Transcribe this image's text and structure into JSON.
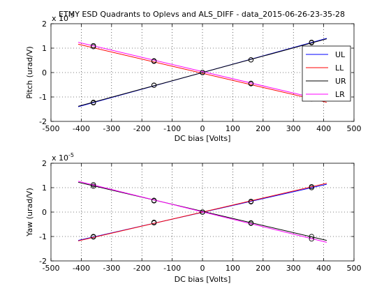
{
  "figure_title": "ETMY ESD Quadrants to Oplevs and ALS_DIFF - data_2015-06-26-23-35-28",
  "chart_data": [
    {
      "type": "line",
      "xlabel": "DC bias [Volts]",
      "ylabel": "Pitch (urad/V)",
      "xlim": [
        -500,
        500
      ],
      "ylim": [
        -2,
        2
      ],
      "x_ticks": [
        "-500",
        "-400",
        "-300",
        "-200",
        "-100",
        "0",
        "100",
        "200",
        "300",
        "400",
        "500"
      ],
      "y_ticks": [
        "-2",
        "-1",
        "0",
        "1",
        "2"
      ],
      "y_exponent": "x 10",
      "y_exponent_power": "-5",
      "grid": true,
      "legend_position": "right",
      "x": [
        -360,
        -160,
        0,
        160,
        360
      ],
      "fit_x": [
        -410,
        410
      ],
      "series": [
        {
          "name": "UL",
          "color": "#0000ff",
          "points": [
            -1.24,
            -0.52,
            0.0,
            0.52,
            1.24
          ],
          "fit": [
            -1.4,
            1.4
          ]
        },
        {
          "name": "LL",
          "color": "#ff0000",
          "points": [
            1.06,
            0.46,
            0.0,
            -0.46,
            -1.08
          ],
          "fit": [
            1.16,
            -1.22
          ]
        },
        {
          "name": "UR",
          "color": "#000000",
          "points": [
            -1.22,
            -0.52,
            0.0,
            0.52,
            1.22
          ],
          "fit": [
            -1.38,
            1.38
          ]
        },
        {
          "name": "LR",
          "color": "#ff00ff",
          "points": [
            1.1,
            0.48,
            0.0,
            -0.44,
            -1.04
          ],
          "fit": [
            1.24,
            -1.16
          ]
        }
      ]
    },
    {
      "type": "line",
      "xlabel": "DC bias [Volts]",
      "ylabel": "Yaw (urad/V)",
      "xlim": [
        -500,
        500
      ],
      "ylim": [
        -2,
        2
      ],
      "x_ticks": [
        "-500",
        "-400",
        "-300",
        "-200",
        "-100",
        "0",
        "100",
        "200",
        "300",
        "400",
        "500"
      ],
      "y_ticks": [
        "-2",
        "-1",
        "0",
        "1",
        "2"
      ],
      "y_exponent": "x 10",
      "y_exponent_power": "-5",
      "grid": true,
      "x": [
        -360,
        -160,
        0,
        160,
        360
      ],
      "fit_x": [
        -410,
        410
      ],
      "series": [
        {
          "color": "#0000ff",
          "points": [
            -1.0,
            -0.42,
            0.0,
            0.42,
            1.0
          ],
          "fit": [
            -1.16,
            1.14
          ]
        },
        {
          "color": "#ff0000",
          "points": [
            -1.02,
            -0.44,
            0.0,
            0.44,
            1.04
          ],
          "fit": [
            -1.18,
            1.18
          ]
        },
        {
          "color": "#000000",
          "points": [
            1.06,
            0.46,
            0.0,
            -0.44,
            -1.0
          ],
          "fit": [
            1.22,
            -1.16
          ]
        },
        {
          "color": "#ff00ff",
          "points": [
            1.12,
            0.48,
            0.0,
            -0.46,
            -1.1
          ],
          "fit": [
            1.26,
            -1.24
          ]
        }
      ]
    }
  ]
}
